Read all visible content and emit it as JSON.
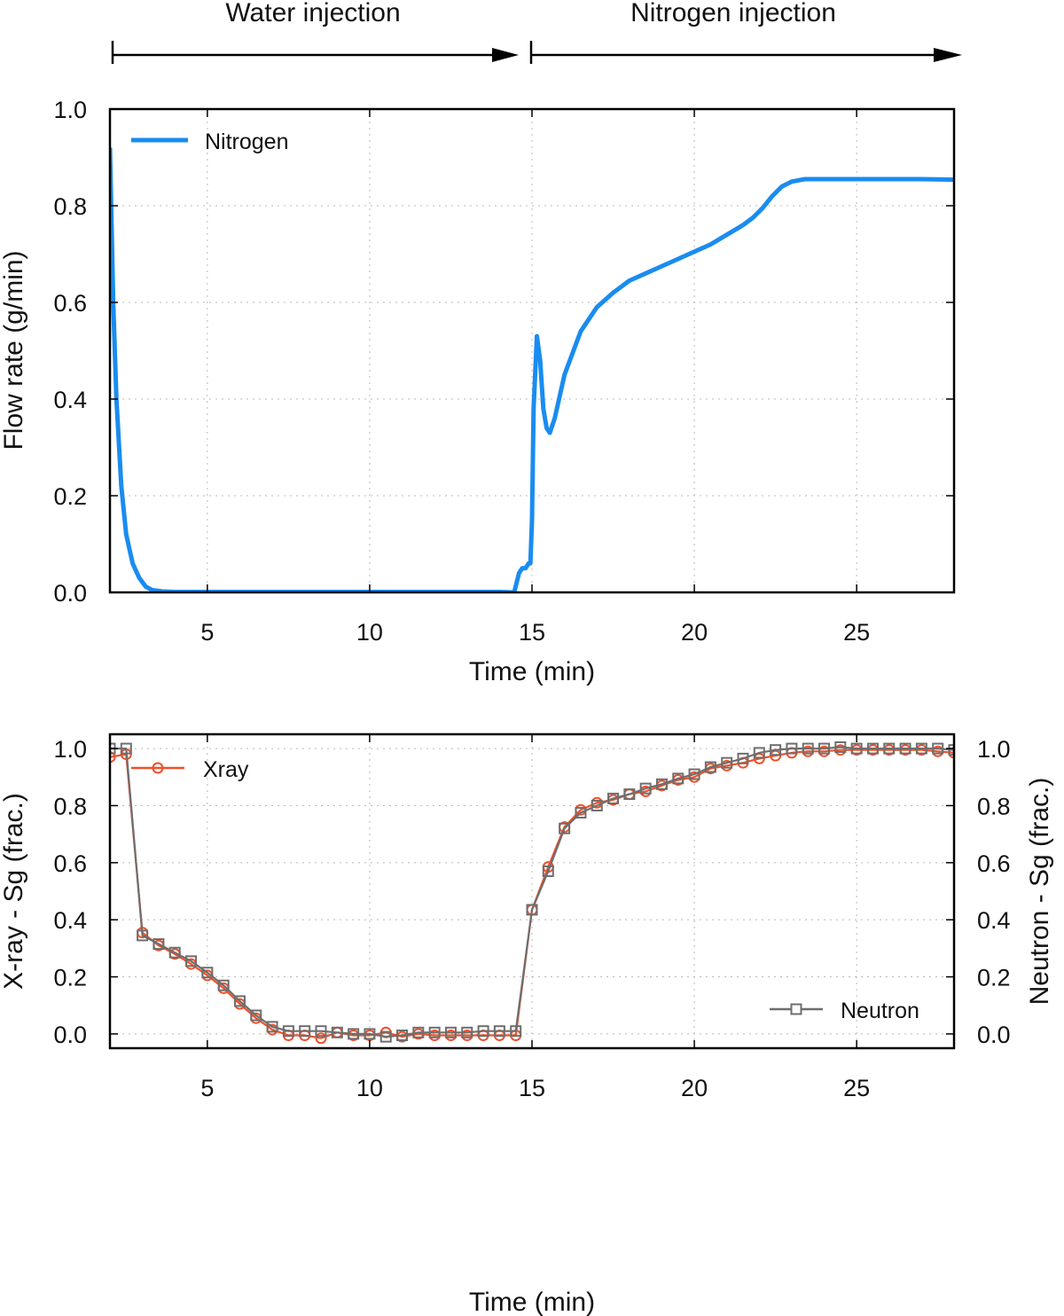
{
  "phases": {
    "water_label": "Water injection",
    "nitrogen_label": "Nitrogen injection"
  },
  "colors": {
    "nitrogen": "#1a8cf0",
    "xray": "#f0502a",
    "neutron": "#6e6e6e"
  },
  "chart_data": [
    {
      "type": "line",
      "title": "",
      "xlabel": "Time (min)",
      "ylabel": "Flow rate (g/min)",
      "xlim": [
        2,
        28
      ],
      "ylim": [
        0,
        1.0
      ],
      "xticks": [
        "5",
        "10",
        "15",
        "20",
        "25"
      ],
      "yticks": [
        "0.0",
        "0.2",
        "0.4",
        "0.6",
        "0.8",
        "1.0"
      ],
      "grid": true,
      "legend_position": "top-left",
      "series": [
        {
          "name": "Nitrogen",
          "x": [
            2.0,
            2.1,
            2.2,
            2.35,
            2.5,
            2.7,
            2.9,
            3.1,
            3.3,
            3.6,
            4.0,
            5,
            8,
            11,
            14.0,
            14.45,
            14.6,
            14.7,
            14.8,
            14.9,
            14.95,
            15.0,
            15.05,
            15.15,
            15.25,
            15.35,
            15.45,
            15.55,
            15.7,
            16.0,
            16.5,
            17.0,
            17.5,
            18.0,
            18.5,
            19.0,
            19.5,
            20.0,
            20.5,
            21.0,
            21.5,
            21.8,
            22.1,
            22.4,
            22.7,
            23.0,
            23.4,
            24.0,
            25,
            26,
            27,
            28
          ],
          "y": [
            0.92,
            0.6,
            0.4,
            0.22,
            0.12,
            0.06,
            0.03,
            0.012,
            0.005,
            0.002,
            0.001,
            0.001,
            0.001,
            0.001,
            0.001,
            0.0,
            0.04,
            0.05,
            0.05,
            0.06,
            0.06,
            0.15,
            0.38,
            0.53,
            0.48,
            0.38,
            0.34,
            0.33,
            0.36,
            0.45,
            0.54,
            0.59,
            0.62,
            0.645,
            0.66,
            0.675,
            0.69,
            0.705,
            0.72,
            0.74,
            0.76,
            0.775,
            0.795,
            0.82,
            0.84,
            0.85,
            0.855,
            0.855,
            0.855,
            0.855,
            0.855,
            0.854
          ]
        }
      ]
    },
    {
      "type": "line",
      "title": "",
      "xlabel": "Time (min)",
      "ylabel": "X-ray - Sg (frac.)",
      "ylabel_right": "Neutron - Sg (frac.)",
      "xlim": [
        2,
        28
      ],
      "ylim": [
        -0.05,
        1.05
      ],
      "xticks": [
        "5",
        "10",
        "15",
        "20",
        "25"
      ],
      "yticks": [
        "0.0",
        "0.2",
        "0.4",
        "0.6",
        "0.8",
        "1.0"
      ],
      "yticks_right": [
        "0.0",
        "0.2",
        "0.4",
        "0.6",
        "0.8",
        "1.0"
      ],
      "grid": true,
      "series": [
        {
          "name": "Xray",
          "marker": "circle",
          "legend_position": "top-left",
          "x": [
            2.0,
            2.5,
            3.0,
            3.5,
            4.0,
            4.5,
            5.0,
            5.5,
            6.0,
            6.5,
            7.0,
            7.5,
            8.0,
            8.5,
            9.0,
            9.5,
            10.0,
            10.5,
            11.0,
            11.5,
            12.0,
            12.5,
            13.0,
            13.5,
            14.0,
            14.5,
            15.0,
            15.5,
            16.0,
            16.5,
            17.0,
            17.5,
            18.0,
            18.5,
            19.0,
            19.5,
            20.0,
            20.5,
            21.0,
            21.5,
            22.0,
            22.5,
            23.0,
            23.5,
            24.0,
            24.5,
            25.0,
            25.5,
            26.0,
            26.5,
            27.0,
            27.5,
            28.0
          ],
          "y": [
            0.97,
            0.98,
            0.355,
            0.31,
            0.28,
            0.245,
            0.205,
            0.16,
            0.105,
            0.055,
            0.015,
            -0.005,
            -0.005,
            -0.015,
            0.005,
            -0.005,
            -0.005,
            0.005,
            -0.01,
            0.0,
            -0.005,
            -0.005,
            -0.005,
            -0.005,
            -0.005,
            -0.005,
            0.435,
            0.585,
            0.725,
            0.785,
            0.81,
            0.82,
            0.84,
            0.85,
            0.87,
            0.89,
            0.9,
            0.93,
            0.94,
            0.95,
            0.965,
            0.975,
            0.985,
            0.99,
            0.99,
            0.995,
            0.995,
            0.995,
            0.995,
            0.995,
            0.995,
            0.99,
            0.985
          ]
        },
        {
          "name": "Neutron",
          "marker": "square",
          "legend_position": "bottom-right",
          "x": [
            2.0,
            2.5,
            3.0,
            3.5,
            4.0,
            4.5,
            5.0,
            5.5,
            6.0,
            6.5,
            7.0,
            7.5,
            8.0,
            8.5,
            9.0,
            9.5,
            10.0,
            10.5,
            11.0,
            11.5,
            12.0,
            12.5,
            13.0,
            13.5,
            14.0,
            14.5,
            15.0,
            15.5,
            16.0,
            16.5,
            17.0,
            17.5,
            18.0,
            18.5,
            19.0,
            19.5,
            20.0,
            20.5,
            21.0,
            21.5,
            22.0,
            22.5,
            23.0,
            23.5,
            24.0,
            24.5,
            25.0,
            25.5,
            26.0,
            26.5,
            27.0,
            27.5,
            28.0
          ],
          "y": [
            1.0,
            1.0,
            0.345,
            0.315,
            0.285,
            0.255,
            0.215,
            0.17,
            0.115,
            0.065,
            0.025,
            0.01,
            0.01,
            0.01,
            0.005,
            0.0,
            0.0,
            -0.01,
            -0.005,
            0.005,
            0.005,
            0.005,
            0.005,
            0.01,
            0.01,
            0.01,
            0.435,
            0.57,
            0.72,
            0.775,
            0.8,
            0.825,
            0.84,
            0.86,
            0.875,
            0.895,
            0.91,
            0.935,
            0.95,
            0.965,
            0.985,
            0.995,
            1.0,
            1.0,
            1.0,
            1.005,
            1.0,
            1.0,
            1.0,
            1.0,
            1.0,
            1.0,
            0.995
          ]
        }
      ]
    }
  ]
}
